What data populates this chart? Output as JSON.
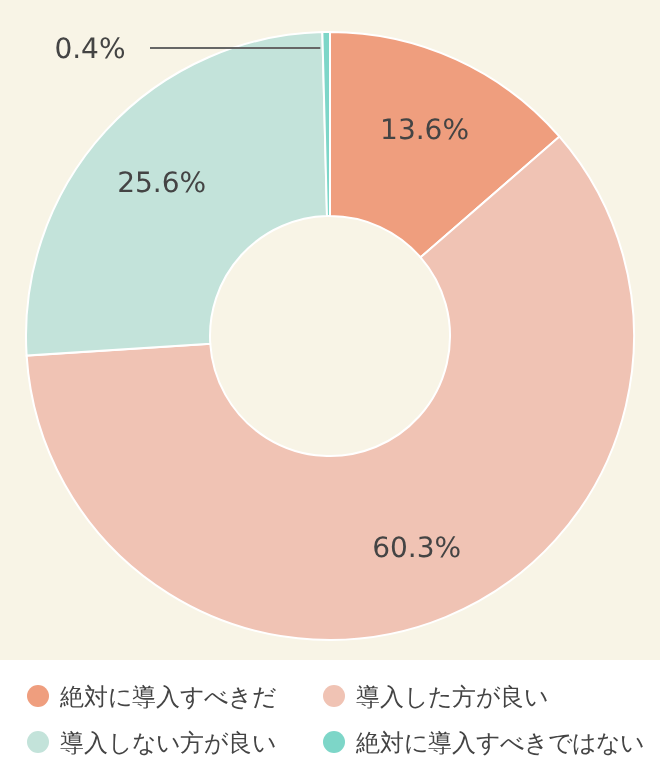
{
  "chart_data": {
    "type": "donut",
    "categories": [
      "絶対に導入すべきだ",
      "導入した方が良い",
      "導入しない方が良い",
      "絶対に導入すべきではない"
    ],
    "values": [
      13.6,
      60.3,
      25.6,
      0.4
    ],
    "colors": [
      "#ef9e7e",
      "#f0c3b4",
      "#c3e3da",
      "#7dd6c8"
    ],
    "value_labels": [
      "13.6%",
      "60.3%",
      "25.6%",
      "0.4%"
    ],
    "legend": "bottom"
  }
}
